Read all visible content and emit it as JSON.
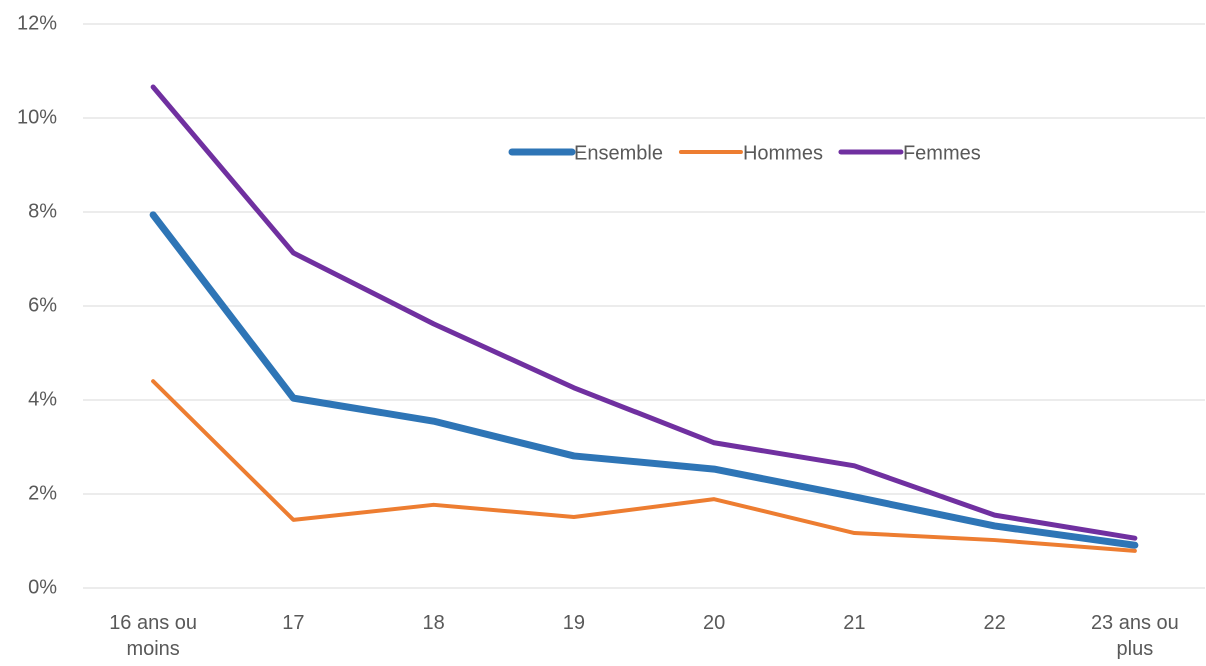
{
  "chart_data": {
    "type": "line",
    "categories": [
      "16 ans ou moins",
      "17",
      "18",
      "19",
      "20",
      "21",
      "22",
      "23 ans ou plus"
    ],
    "series": [
      {
        "name": "Ensemble",
        "color": "#2e75b6",
        "width": 7,
        "values": [
          7.94,
          4.04,
          3.55,
          2.81,
          2.53,
          1.94,
          1.32,
          0.91
        ]
      },
      {
        "name": "Hommes",
        "color": "#ed7d31",
        "width": 4,
        "values": [
          4.4,
          1.45,
          1.77,
          1.51,
          1.89,
          1.17,
          1.02,
          0.79
        ]
      },
      {
        "name": "Femmes",
        "color": "#7030a0",
        "width": 5,
        "values": [
          10.66,
          7.13,
          5.62,
          4.26,
          3.09,
          2.6,
          1.55,
          1.06
        ]
      }
    ],
    "ylim": [
      0,
      12
    ],
    "yticks": [
      {
        "value": 0,
        "label": "0%"
      },
      {
        "value": 2,
        "label": "2%"
      },
      {
        "value": 4,
        "label": "4%"
      },
      {
        "value": 6,
        "label": "6%"
      },
      {
        "value": 8,
        "label": "8%"
      },
      {
        "value": 10,
        "label": "10%"
      },
      {
        "value": 12,
        "label": "12%"
      }
    ],
    "grid": true,
    "legend": "top-right"
  }
}
